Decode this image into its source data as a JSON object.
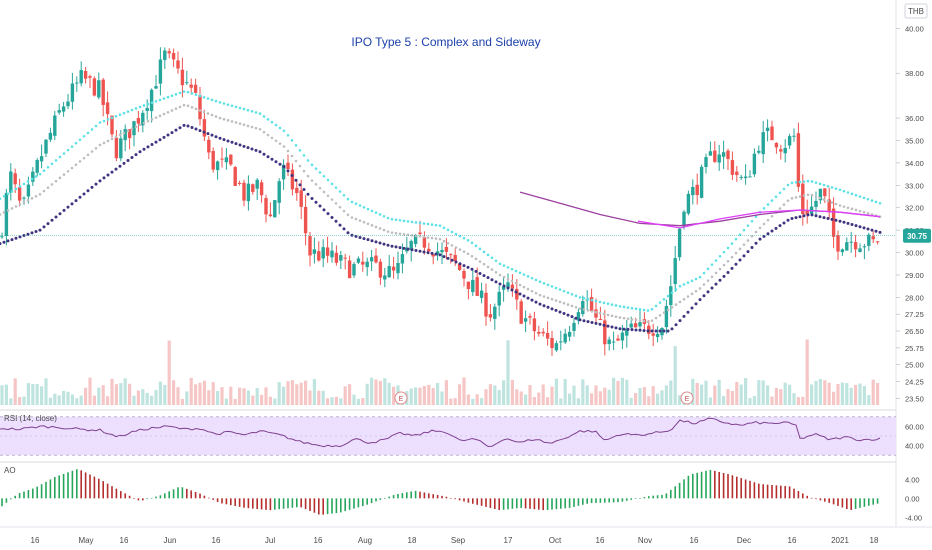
{
  "header": {
    "currency": "THB",
    "title": "IPO Type 5 : Complex and Sideway"
  },
  "price_badge": "30.75",
  "rsi_label": "RSI (14, close)",
  "ao_label": "AO",
  "earnings_marker": "E",
  "colors": {
    "up": "#26a69a",
    "down": "#ef5350",
    "ema_fast": "#5ce1e6",
    "ema_mid": "#bdbdbd",
    "ema_slow": "#3f3480",
    "ma_purple": "#9c3fa0",
    "ma_pink": "#e040fb",
    "rsi_line": "#7e3f8f",
    "rsi_band": "#ede0ff",
    "last_price": "#26a69a",
    "title": "#1c3faa"
  },
  "chart_data": [
    {
      "type": "candlestick",
      "title": "IPO Type 5 : Complex and Sideway",
      "y_ticks": [
        "40.00",
        "38.00",
        "36.00",
        "35.00",
        "34.00",
        "33.00",
        "32.00",
        "31.00",
        "30.00",
        "29.00",
        "28.00",
        "27.25",
        "26.50",
        "25.75",
        "25.00",
        "24.25",
        "23.50"
      ],
      "x_ticks": [
        "16",
        "May",
        "16",
        "Jun",
        "16",
        "Jul",
        "16",
        "Aug",
        "18",
        "Sep",
        "17",
        "Oct",
        "16",
        "Nov",
        "16",
        "Dec",
        "16",
        "2021",
        "18"
      ],
      "last_price": 30.75,
      "ylim": [
        23.2,
        41.0
      ],
      "close_path": [
        [
          0,
          30.6
        ],
        [
          10,
          33.5
        ],
        [
          22,
          31.8
        ],
        [
          40,
          34.2
        ],
        [
          62,
          36.5
        ],
        [
          82,
          37.8
        ],
        [
          100,
          37.2
        ],
        [
          115,
          34.5
        ],
        [
          138,
          36.0
        ],
        [
          152,
          37.3
        ],
        [
          165,
          38.8
        ],
        [
          178,
          38.0
        ],
        [
          195,
          37.0
        ],
        [
          210,
          34.0
        ],
        [
          230,
          33.8
        ],
        [
          245,
          32.5
        ],
        [
          258,
          33.0
        ],
        [
          270,
          31.5
        ],
        [
          282,
          33.8
        ],
        [
          298,
          32.5
        ],
        [
          310,
          30.0
        ],
        [
          330,
          29.8
        ],
        [
          350,
          29.3
        ],
        [
          375,
          29.4
        ],
        [
          395,
          29.0
        ],
        [
          410,
          30.3
        ],
        [
          425,
          30.5
        ],
        [
          440,
          30.0
        ],
        [
          455,
          29.5
        ],
        [
          472,
          28.5
        ],
        [
          490,
          27.3
        ],
        [
          508,
          28.5
        ],
        [
          520,
          27.3
        ],
        [
          535,
          26.5
        ],
        [
          555,
          25.8
        ],
        [
          570,
          26.8
        ],
        [
          583,
          28.2
        ],
        [
          598,
          26.8
        ],
        [
          612,
          25.7
        ],
        [
          628,
          26.5
        ],
        [
          645,
          26.6
        ],
        [
          662,
          26.8
        ],
        [
          672,
          28.8
        ],
        [
          683,
          32.2
        ],
        [
          695,
          32.8
        ],
        [
          710,
          34.2
        ],
        [
          720,
          34.6
        ],
        [
          735,
          33.6
        ],
        [
          745,
          33.0
        ],
        [
          758,
          34.9
        ],
        [
          770,
          35.3
        ],
        [
          782,
          34.8
        ],
        [
          795,
          35.2
        ],
        [
          800,
          31.8
        ],
        [
          812,
          32.0
        ],
        [
          822,
          32.8
        ],
        [
          835,
          30.4
        ],
        [
          848,
          30.6
        ],
        [
          862,
          30.5
        ],
        [
          875,
          30.4
        ],
        [
          880,
          30.75
        ]
      ],
      "ema_fast_path": [
        [
          0,
          32.4
        ],
        [
          40,
          33.5
        ],
        [
          100,
          35.8
        ],
        [
          140,
          36.5
        ],
        [
          185,
          37.2
        ],
        [
          220,
          36.7
        ],
        [
          260,
          36.2
        ],
        [
          285,
          35.4
        ],
        [
          310,
          34.0
        ],
        [
          350,
          32.3
        ],
        [
          390,
          31.5
        ],
        [
          440,
          31.2
        ],
        [
          470,
          30.5
        ],
        [
          500,
          29.5
        ],
        [
          540,
          28.7
        ],
        [
          580,
          28.0
        ],
        [
          620,
          27.6
        ],
        [
          650,
          27.4
        ],
        [
          680,
          28.5
        ],
        [
          700,
          28.9
        ],
        [
          730,
          30.3
        ],
        [
          760,
          31.8
        ],
        [
          790,
          33.1
        ],
        [
          810,
          33.2
        ],
        [
          840,
          32.8
        ],
        [
          880,
          32.2
        ]
      ],
      "ema_mid_path": [
        [
          0,
          31.7
        ],
        [
          40,
          32.6
        ],
        [
          100,
          34.8
        ],
        [
          140,
          35.7
        ],
        [
          185,
          36.6
        ],
        [
          220,
          36.0
        ],
        [
          260,
          35.5
        ],
        [
          285,
          34.7
        ],
        [
          310,
          33.3
        ],
        [
          350,
          31.6
        ],
        [
          390,
          30.9
        ],
        [
          440,
          30.6
        ],
        [
          470,
          29.9
        ],
        [
          500,
          29.0
        ],
        [
          540,
          28.1
        ],
        [
          580,
          27.5
        ],
        [
          620,
          27.1
        ],
        [
          650,
          26.9
        ],
        [
          680,
          27.8
        ],
        [
          700,
          28.4
        ],
        [
          730,
          29.7
        ],
        [
          760,
          31.1
        ],
        [
          790,
          32.4
        ],
        [
          810,
          32.6
        ],
        [
          840,
          32.1
        ],
        [
          880,
          31.6
        ]
      ],
      "ema_slow_path": [
        [
          0,
          30.4
        ],
        [
          40,
          31.0
        ],
        [
          100,
          33.2
        ],
        [
          140,
          34.5
        ],
        [
          185,
          35.7
        ],
        [
          220,
          35.1
        ],
        [
          260,
          34.5
        ],
        [
          285,
          33.8
        ],
        [
          310,
          32.5
        ],
        [
          350,
          30.8
        ],
        [
          390,
          30.3
        ],
        [
          440,
          29.9
        ],
        [
          470,
          29.3
        ],
        [
          500,
          28.6
        ],
        [
          540,
          27.7
        ],
        [
          580,
          27.0
        ],
        [
          620,
          26.6
        ],
        [
          650,
          26.5
        ],
        [
          670,
          26.5
        ],
        [
          700,
          27.9
        ],
        [
          730,
          29.2
        ],
        [
          760,
          30.6
        ],
        [
          790,
          31.5
        ],
        [
          810,
          31.7
        ],
        [
          840,
          31.4
        ],
        [
          880,
          30.9
        ]
      ],
      "ma_purple_path": [
        [
          520,
          32.7
        ],
        [
          560,
          32.2
        ],
        [
          600,
          31.7
        ],
        [
          640,
          31.3
        ],
        [
          680,
          31.2
        ],
        [
          720,
          31.4
        ],
        [
          760,
          31.7
        ],
        [
          800,
          31.9
        ],
        [
          840,
          31.8
        ],
        [
          880,
          31.6
        ]
      ],
      "ma_pink_path": [
        [
          638,
          31.4
        ],
        [
          680,
          31.1
        ],
        [
          720,
          31.5
        ],
        [
          760,
          31.8
        ],
        [
          800,
          31.9
        ],
        [
          840,
          31.8
        ],
        [
          880,
          31.6
        ]
      ]
    },
    {
      "type": "line",
      "title": "RSI (14, close)",
      "y_ticks": [
        "60.00",
        "40.00"
      ],
      "ylim": [
        25,
        75
      ],
      "band": [
        30,
        70
      ],
      "path": [
        [
          0,
          58
        ],
        [
          20,
          57
        ],
        [
          40,
          60
        ],
        [
          60,
          59
        ],
        [
          80,
          57
        ],
        [
          100,
          56
        ],
        [
          118,
          49
        ],
        [
          135,
          55
        ],
        [
          150,
          58
        ],
        [
          168,
          60
        ],
        [
          185,
          57
        ],
        [
          200,
          58
        ],
        [
          215,
          52
        ],
        [
          230,
          54
        ],
        [
          245,
          51
        ],
        [
          260,
          55
        ],
        [
          280,
          51
        ],
        [
          300,
          44
        ],
        [
          320,
          40
        ],
        [
          340,
          40
        ],
        [
          355,
          47
        ],
        [
          370,
          43
        ],
        [
          385,
          46
        ],
        [
          400,
          53
        ],
        [
          415,
          50
        ],
        [
          430,
          55
        ],
        [
          445,
          55
        ],
        [
          460,
          45
        ],
        [
          475,
          47
        ],
        [
          490,
          38
        ],
        [
          505,
          48
        ],
        [
          520,
          43
        ],
        [
          535,
          47
        ],
        [
          550,
          42
        ],
        [
          565,
          48
        ],
        [
          580,
          55
        ],
        [
          595,
          55
        ],
        [
          605,
          45
        ],
        [
          620,
          52
        ],
        [
          640,
          51
        ],
        [
          660,
          54
        ],
        [
          670,
          56
        ],
        [
          680,
          66
        ],
        [
          695,
          63
        ],
        [
          710,
          68
        ],
        [
          725,
          64
        ],
        [
          740,
          61
        ],
        [
          755,
          64
        ],
        [
          770,
          63
        ],
        [
          785,
          64
        ],
        [
          797,
          61
        ],
        [
          800,
          47
        ],
        [
          815,
          52
        ],
        [
          830,
          46
        ],
        [
          845,
          49
        ],
        [
          860,
          46
        ],
        [
          880,
          47
        ]
      ]
    },
    {
      "type": "bar",
      "title": "AO",
      "y_ticks": [
        "4.00",
        "0.00",
        "-4.00"
      ],
      "ylim": [
        -5.6,
        7.0
      ],
      "path": [
        [
          0,
          -2
        ],
        [
          18,
          1
        ],
        [
          35,
          2.2
        ],
        [
          55,
          4.5
        ],
        [
          78,
          6.2
        ],
        [
          100,
          4
        ],
        [
          120,
          1.6
        ],
        [
          140,
          -0.6
        ],
        [
          160,
          0.6
        ],
        [
          180,
          2.5
        ],
        [
          200,
          1
        ],
        [
          220,
          -1
        ],
        [
          245,
          -2
        ],
        [
          270,
          -2.5
        ],
        [
          300,
          -1.8
        ],
        [
          320,
          -3.5
        ],
        [
          340,
          -3
        ],
        [
          365,
          -1.5
        ],
        [
          395,
          0.8
        ],
        [
          415,
          1.6
        ],
        [
          445,
          0.4
        ],
        [
          470,
          -1
        ],
        [
          500,
          -2.5
        ],
        [
          520,
          -2
        ],
        [
          545,
          -2.5
        ],
        [
          570,
          -2
        ],
        [
          590,
          -1
        ],
        [
          620,
          -0.8
        ],
        [
          650,
          0.5
        ],
        [
          665,
          0.8
        ],
        [
          690,
          5
        ],
        [
          710,
          6
        ],
        [
          730,
          5
        ],
        [
          760,
          3
        ],
        [
          790,
          2.5
        ],
        [
          810,
          0.2
        ],
        [
          830,
          -1
        ],
        [
          850,
          -2.5
        ],
        [
          880,
          -1
        ]
      ]
    }
  ]
}
